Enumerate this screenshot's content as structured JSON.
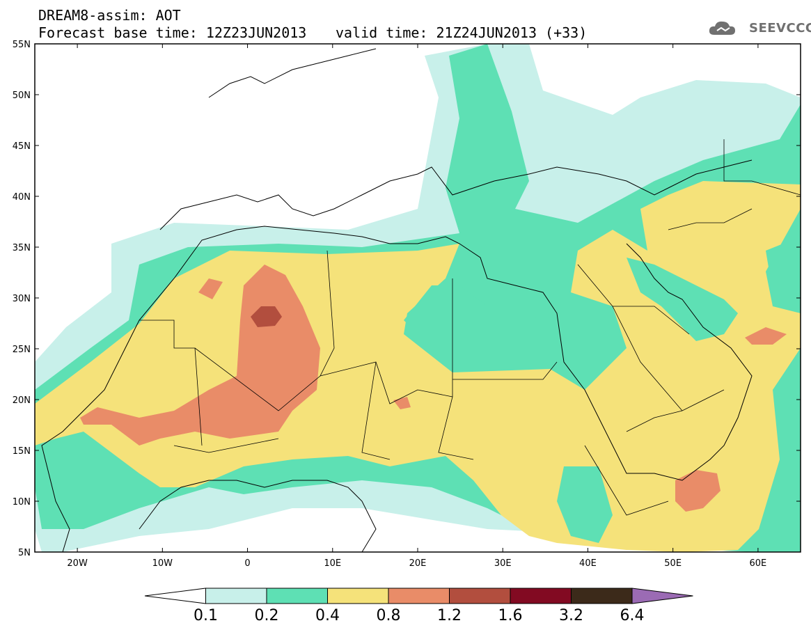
{
  "title": {
    "model_line": "DREAM8-assim: AOT",
    "base_time": "Forecast base time: 12Z23JUN2013",
    "valid_time": "valid time: 21Z24JUN2013 (+33)"
  },
  "logo": {
    "text": "SEEVCCC",
    "icon": "cloud-icon"
  },
  "axes": {
    "lat_labels": [
      "55N",
      "50N",
      "45N",
      "40N",
      "35N",
      "30N",
      "25N",
      "20N",
      "15N",
      "10N",
      "5N"
    ],
    "lon_labels": [
      "20W",
      "10W",
      "0",
      "10E",
      "20E",
      "30E",
      "40E",
      "50E",
      "60E"
    ],
    "lon_range": [
      -25,
      65
    ],
    "lat_range": [
      5,
      55
    ]
  },
  "colorbar": {
    "labels": [
      "0.1",
      "0.2",
      "0.4",
      "0.8",
      "1.2",
      "1.6",
      "3.2",
      "6.4"
    ],
    "colors": [
      "#ffffff",
      "#c8f0ea",
      "#5ee0b4",
      "#f5e27a",
      "#e98c68",
      "#b24e3e",
      "#820a22",
      "#3c2a1a",
      "#9b6bb4"
    ]
  }
}
